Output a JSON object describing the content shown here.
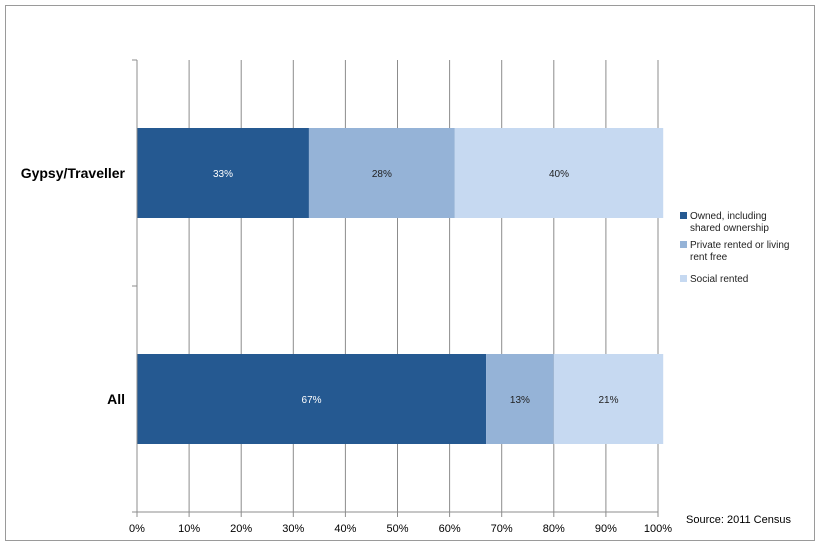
{
  "chart_data": {
    "type": "bar",
    "orientation": "horizontal",
    "stacked": "percent",
    "categories": [
      "Gypsy/Traveller",
      "All"
    ],
    "series": [
      {
        "name": "Owned, including shared ownership",
        "values": [
          33,
          67
        ],
        "labels": [
          "33%",
          "67%"
        ],
        "color": "#255991"
      },
      {
        "name": "Private rented or living rent free",
        "values": [
          28,
          13
        ],
        "labels": [
          "28%",
          "13%"
        ],
        "color": "#95b3d7"
      },
      {
        "name": "Social rented",
        "values": [
          40,
          21
        ],
        "labels": [
          "40%",
          "21%"
        ],
        "color": "#c6d9f1"
      }
    ],
    "xlim": [
      0,
      100
    ],
    "xticks": [
      "0%",
      "10%",
      "20%",
      "30%",
      "40%",
      "50%",
      "60%",
      "70%",
      "80%",
      "90%",
      "100%"
    ],
    "grid": "vertical",
    "legend": "right",
    "source": "Source: 2011 Census"
  }
}
